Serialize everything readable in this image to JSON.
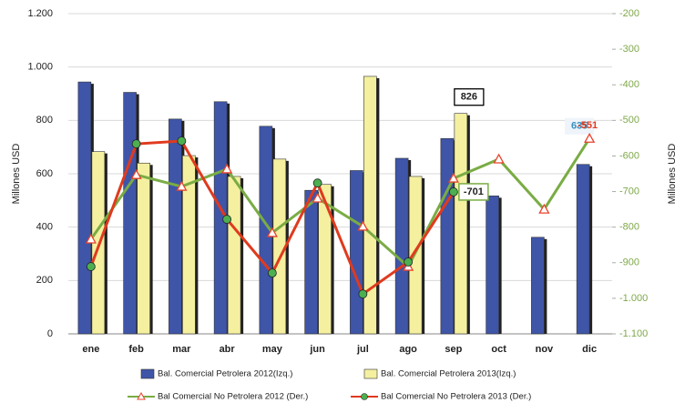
{
  "chart_data": {
    "type": "bar-line",
    "y_label": "Millones USD",
    "y2_label": "Millones USD",
    "categories": [
      "ene",
      "feb",
      "mar",
      "abr",
      "may",
      "jun",
      "jul",
      "ago",
      "sep",
      "oct",
      "nov",
      "dic"
    ],
    "ylim": [
      0,
      1200
    ],
    "yticks": [
      0,
      200,
      400,
      600,
      800,
      {
        "value": 1000,
        "label": "1.000"
      },
      {
        "value": 1200,
        "label": "1.200"
      }
    ],
    "y2lim": [
      -1100,
      -200
    ],
    "y2ticks": [
      {
        "value": -1100,
        "label": "-1.100"
      },
      {
        "value": -1000,
        "label": "-1.000"
      },
      -900,
      -800,
      -700,
      -600,
      -500,
      -400,
      -300,
      -200
    ],
    "grid": true,
    "series": [
      {
        "name": "Bal. Comercial Petrolera 2012(Izq.)",
        "type": "bar",
        "color": "#3f55a8",
        "values": [
          944,
          905,
          805,
          870,
          778,
          538,
          612,
          658,
          732,
          517,
          362,
          635
        ],
        "value_labels": [
          null,
          null,
          null,
          null,
          null,
          null,
          null,
          null,
          null,
          null,
          null,
          "635"
        ]
      },
      {
        "name": "Bal. Comercial Petrolera 2013(Izq.)",
        "type": "bar",
        "color": "#f4f0a0",
        "values": [
          683,
          640,
          668,
          590,
          655,
          560,
          965,
          590,
          826,
          null,
          null,
          null
        ],
        "value_labels": [
          null,
          null,
          null,
          null,
          null,
          null,
          null,
          null,
          "826",
          null,
          null,
          null
        ]
      },
      {
        "name": "Bal Comercial No Petrolera 2012 (Der.)",
        "type": "line",
        "axis": "y2",
        "color": "#7aac44",
        "marker_color": "#e8412c",
        "marker": "triangle",
        "values": [
          -834,
          -653,
          -686,
          -637,
          -816,
          -719,
          -798,
          -911,
          -663,
          -609,
          -750,
          -551
        ],
        "value_labels": [
          null,
          null,
          null,
          null,
          null,
          null,
          null,
          null,
          null,
          null,
          null,
          "-551"
        ]
      },
      {
        "name": "Bal Comercial No Petrolera 2013 (Der.)",
        "type": "line",
        "axis": "y2",
        "color": "#e03a1e",
        "marker_color": "#4caf50",
        "marker": "circle",
        "values": [
          -911,
          -566,
          -558,
          -778,
          -929,
          -676,
          -988,
          -898,
          -701,
          null,
          null,
          null
        ],
        "value_labels": [
          null,
          null,
          null,
          null,
          null,
          null,
          null,
          null,
          "-701",
          null,
          null,
          null
        ]
      }
    ]
  }
}
